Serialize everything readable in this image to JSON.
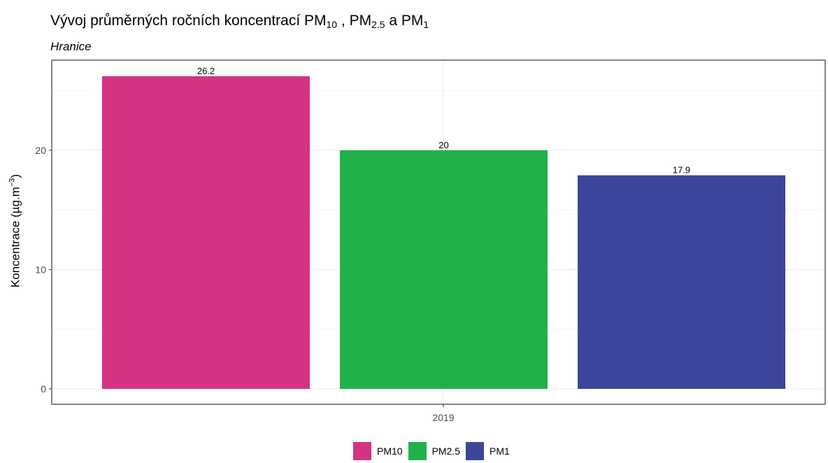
{
  "chart_data": {
    "type": "bar",
    "title": {
      "prefix": "Vývoj průměrných ročních koncentrací PM",
      "sub1": "10",
      "sep1": " , PM",
      "sub2": "2.5",
      "sep2": " a PM",
      "sub3": "1"
    },
    "subtitle": "Hranice",
    "ylabel": {
      "text": "Koncentrace (µg.m",
      "sup": "−3",
      "close": ")"
    },
    "categories": [
      "2019"
    ],
    "series": [
      {
        "name": "PM10",
        "values": [
          26.2
        ],
        "label": "26.2",
        "color": "#d63384"
      },
      {
        "name": "PM2.5",
        "values": [
          20
        ],
        "label": "20",
        "color": "#21b14b"
      },
      {
        "name": "PM1",
        "values": [
          17.9
        ],
        "label": "17.9",
        "color": "#3d459b"
      }
    ],
    "ylim": [
      0,
      28.88
    ],
    "yticks": [
      0,
      10,
      20
    ],
    "grid": true,
    "legend_position": "bottom"
  }
}
